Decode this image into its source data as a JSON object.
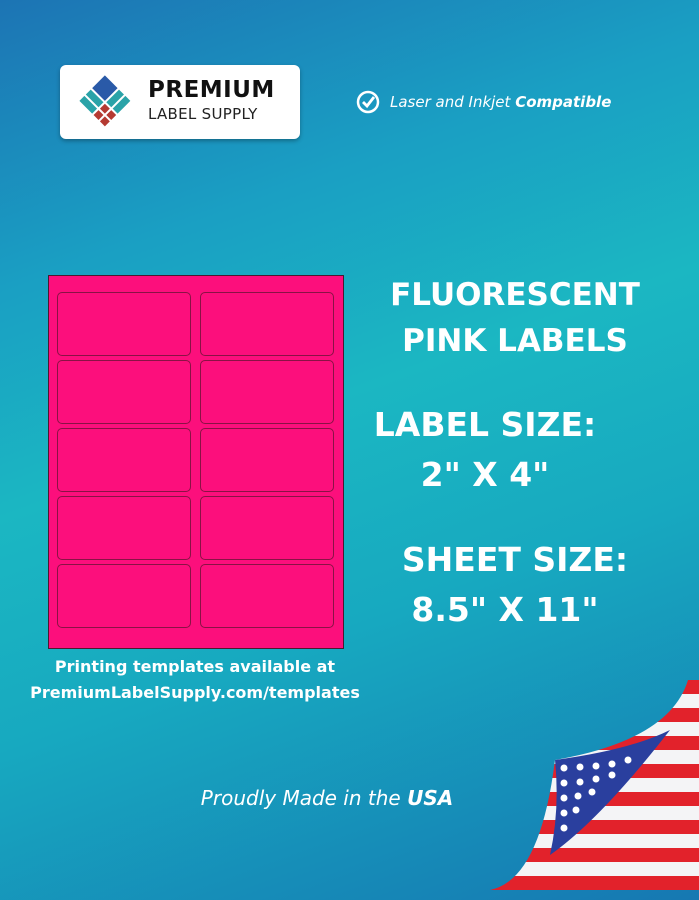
{
  "brand": {
    "line1": "PREMIUM",
    "line2": "LABEL SUPPLY"
  },
  "compat": {
    "text": "Laser and Inkjet",
    "bold": "Compatible",
    "icon": "check-circle-icon"
  },
  "headings": {
    "product_l1": "FLUORESCENT",
    "product_l2": "PINK LABELS",
    "label_size_l1": "LABEL SIZE:",
    "label_size_l2": "2\" X 4\"",
    "sheet_size_l1": "SHEET SIZE:",
    "sheet_size_l2": "8.5\" X 11\""
  },
  "templates": {
    "line1": "Printing templates available at",
    "line2": "PremiumLabelSupply.com/templates"
  },
  "made": {
    "text": "Proudly Made in the",
    "bold": "USA"
  },
  "colors": {
    "label": "#fc0f7c",
    "background": "#1bb7c2"
  },
  "sheet": {
    "columns": 2,
    "rows": 5
  }
}
